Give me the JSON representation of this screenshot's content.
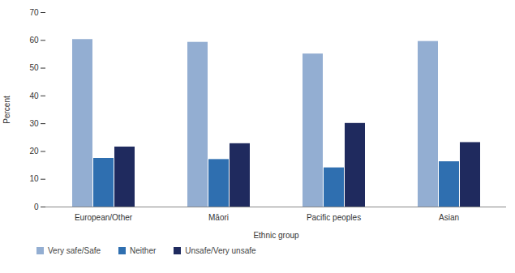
{
  "chart_data": {
    "type": "bar",
    "x_label": "Ethnic group",
    "y_label": "Percent",
    "categories": [
      "European/Other",
      "Māori",
      "Pacific peoples",
      "Asian"
    ],
    "series": [
      {
        "name": "Very safe/Safe",
        "color": "#93aed2",
        "values": [
          60.3,
          59.3,
          55.1,
          59.6
        ]
      },
      {
        "name": "Neither",
        "color": "#2f6fb0",
        "values": [
          17.5,
          17.1,
          14.1,
          16.3
        ]
      },
      {
        "name": "Unsafe/Very unsafe",
        "color": "#1f2a5e",
        "values": [
          21.6,
          22.8,
          30.1,
          23.2
        ]
      }
    ],
    "ylim": [
      0,
      70
    ],
    "yticks": [
      0,
      10,
      20,
      30,
      40,
      50,
      60,
      70
    ],
    "grid": false,
    "legend": "bottom"
  }
}
